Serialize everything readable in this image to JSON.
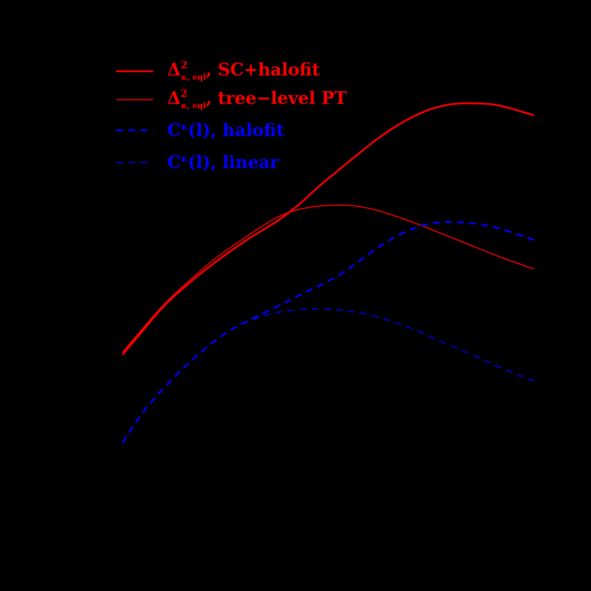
{
  "chart_data": {
    "type": "line",
    "title": "",
    "xlabel": "",
    "ylabel": "",
    "background": "#000000",
    "legend_position": "upper-left",
    "series": [
      {
        "name": "Δ²_{κ, eql}, SC+halofit",
        "label_main": "Δ",
        "label_sup": "2",
        "label_sub": "κ, eql",
        "label_rest": ", SC+halofit",
        "color": "#ff0000",
        "style": "solid",
        "width": 2.6,
        "points": [
          [
            172,
            498
          ],
          [
            200,
            465
          ],
          [
            230,
            430
          ],
          [
            265,
            398
          ],
          [
            300,
            370
          ],
          [
            345,
            338
          ],
          [
            390,
            310
          ],
          [
            420,
            287
          ],
          [
            450,
            260
          ],
          [
            490,
            227
          ],
          [
            530,
            195
          ],
          [
            565,
            172
          ],
          [
            600,
            155
          ],
          [
            630,
            147
          ],
          [
            660,
            145
          ],
          [
            700,
            148
          ],
          [
            750,
            162
          ]
        ]
      },
      {
        "name": "Δ²_{κ, eql}, tree-level PT",
        "label_main": "Δ",
        "label_sup": "2",
        "label_sub": "κ, eql",
        "label_rest": ", tree-level PT",
        "color": "#ff0000",
        "style": "solid",
        "width": 1.5,
        "points": [
          [
            172,
            495
          ],
          [
            200,
            462
          ],
          [
            230,
            428
          ],
          [
            265,
            395
          ],
          [
            300,
            365
          ],
          [
            345,
            333
          ],
          [
            390,
            305
          ],
          [
            430,
            292
          ],
          [
            480,
            288
          ],
          [
            520,
            293
          ],
          [
            560,
            305
          ],
          [
            600,
            320
          ],
          [
            650,
            340
          ],
          [
            700,
            360
          ],
          [
            750,
            378
          ]
        ]
      },
      {
        "name": "C^κ(l), halofit",
        "label_main": "C",
        "label_sup": "κ",
        "label_sub": "",
        "label_rest": "(l), halofit",
        "color": "#0000ff",
        "style": "dashed",
        "width": 2.6,
        "points": [
          [
            172,
            622
          ],
          [
            200,
            580
          ],
          [
            230,
            545
          ],
          [
            265,
            510
          ],
          [
            300,
            480
          ],
          [
            330,
            460
          ],
          [
            360,
            445
          ],
          [
            400,
            425
          ],
          [
            430,
            410
          ],
          [
            470,
            390
          ],
          [
            500,
            370
          ],
          [
            530,
            348
          ],
          [
            560,
            330
          ],
          [
            600,
            315
          ],
          [
            640,
            312
          ],
          [
            690,
            318
          ],
          [
            750,
            337
          ]
        ]
      },
      {
        "name": "C^κ(l), linear",
        "label_main": "C",
        "label_sup": "κ",
        "label_sub": "",
        "label_rest": "(l), linear",
        "color": "#0000ff",
        "style": "dashed",
        "width": 1.5,
        "points": [
          [
            172,
            622
          ],
          [
            200,
            580
          ],
          [
            230,
            545
          ],
          [
            265,
            510
          ],
          [
            300,
            480
          ],
          [
            330,
            460
          ],
          [
            360,
            447
          ],
          [
            400,
            437
          ],
          [
            450,
            434
          ],
          [
            490,
            437
          ],
          [
            530,
            445
          ],
          [
            580,
            462
          ],
          [
            620,
            480
          ],
          [
            660,
            497
          ],
          [
            700,
            515
          ],
          [
            750,
            535
          ]
        ]
      }
    ],
    "axes": {
      "x_tick_labels": [],
      "y_tick_labels": [],
      "note": "axes and tick labels not visible (black on black)"
    }
  },
  "legend": {
    "items": [
      {
        "main": "Δ",
        "sup": "2",
        "sub": "κ, eql",
        "rest": ", SC+halofit"
      },
      {
        "main": "Δ",
        "sup": "2",
        "sub": "κ, eql",
        "rest": ", tree−level PT"
      },
      {
        "main": "C",
        "sup": "κ",
        "sub": "",
        "rest": "(l), halofit"
      },
      {
        "main": "C",
        "sup": "κ",
        "sub": "",
        "rest": "(l), linear"
      }
    ]
  }
}
